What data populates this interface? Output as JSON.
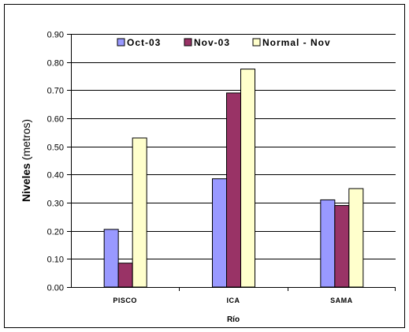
{
  "chart_data": {
    "type": "bar",
    "categories": [
      "PISCO",
      "ICA",
      "SAMA"
    ],
    "series": [
      {
        "name": "Oct-03",
        "color": "#9999FF",
        "values": [
          0.205,
          0.385,
          0.31
        ]
      },
      {
        "name": "Nov-03",
        "color": "#993366",
        "values": [
          0.085,
          0.69,
          0.29
        ]
      },
      {
        "name": "Normal - Nov",
        "color": "#FFFFCC",
        "values": [
          0.53,
          0.775,
          0.35
        ]
      }
    ],
    "ylabel_bold": "Niveles",
    "ylabel_rest": "(metros)",
    "xlabel": "Río",
    "ylim": [
      0,
      0.9
    ],
    "yticks": [
      "0.00",
      "0.10",
      "0.20",
      "0.30",
      "0.40",
      "0.50",
      "0.60",
      "0.70",
      "0.80",
      "0.90"
    ],
    "grid": true,
    "legend_position": "top-inside",
    "plot_background": "#FFFFFF",
    "bar_outline": "#000000"
  }
}
